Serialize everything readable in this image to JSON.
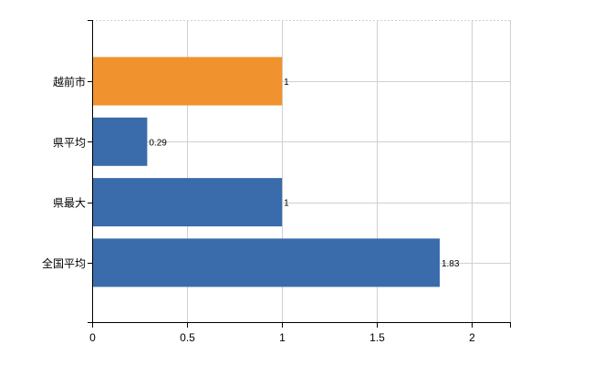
{
  "chart_data": {
    "type": "bar",
    "orientation": "horizontal",
    "categories": [
      "越前市",
      "県平均",
      "県最大",
      "全国平均"
    ],
    "values": [
      1,
      0.29,
      1,
      1.83
    ],
    "data_labels": [
      "1",
      "0.29",
      "1",
      "1.83"
    ],
    "highlight_category": "越前市",
    "colors": {
      "highlight": "#F0922E",
      "default": "#3A6BAA",
      "grid": "#D0D0D0",
      "axis": "#000000"
    },
    "xlim": [
      0,
      2.2
    ],
    "x_ticks": [
      0,
      0.5,
      1,
      1.5,
      2
    ],
    "x_tick_labels": [
      "0",
      "0.5",
      "1",
      "1.5",
      "2"
    ],
    "grid": true,
    "legend": "none"
  }
}
